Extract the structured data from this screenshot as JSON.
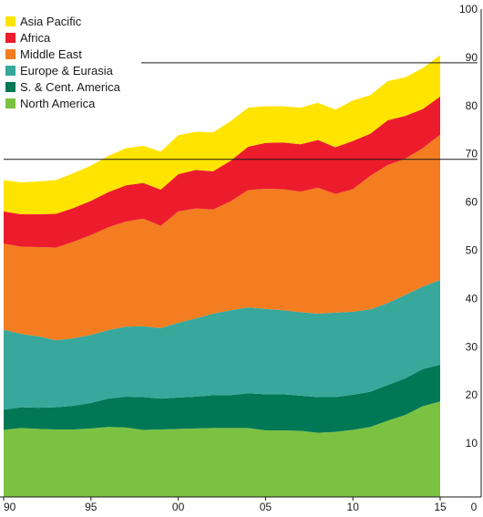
{
  "chart_data": {
    "type": "area",
    "stacked": true,
    "x": [
      1990,
      1991,
      1992,
      1993,
      1994,
      1995,
      1996,
      1997,
      1998,
      1999,
      2000,
      2001,
      2002,
      2003,
      2004,
      2005,
      2006,
      2007,
      2008,
      2009,
      2010,
      2011,
      2012,
      2013,
      2014,
      2015
    ],
    "x_tick_values": [
      1990,
      1995,
      2000,
      2005,
      2010,
      2015
    ],
    "x_tick_labels": [
      "90",
      "95",
      "00",
      "05",
      "10",
      "15"
    ],
    "y_ticks": [
      0,
      10,
      20,
      30,
      40,
      50,
      60,
      70,
      80,
      90,
      100
    ],
    "ylim": [
      0,
      100
    ],
    "xlim": [
      1990,
      2015
    ],
    "title": "",
    "xlabel": "",
    "ylabel": "",
    "legend_position": "top-left",
    "grid": "partial horizontal lines at 70 and 90",
    "series": [
      {
        "name": "North America",
        "color": "#7cc242",
        "values": [
          13.9,
          14.3,
          14.1,
          14.0,
          14.0,
          14.2,
          14.5,
          14.4,
          13.9,
          14.0,
          14.1,
          14.2,
          14.3,
          14.3,
          14.3,
          13.8,
          13.8,
          13.7,
          13.3,
          13.5,
          13.9,
          14.5,
          15.8,
          17.0,
          18.8,
          19.8
        ]
      },
      {
        "name": "S. & Cent. America",
        "color": "#007855",
        "values": [
          4.2,
          4.3,
          4.4,
          4.6,
          4.9,
          5.3,
          5.9,
          6.4,
          6.8,
          6.4,
          6.5,
          6.6,
          6.8,
          6.8,
          7.2,
          7.5,
          7.5,
          7.3,
          7.4,
          7.2,
          7.3,
          7.3,
          7.4,
          7.6,
          7.7,
          7.6
        ]
      },
      {
        "name": "Europe & Eurasia",
        "color": "#38a89d",
        "values": [
          16.6,
          15.2,
          14.8,
          13.9,
          14.0,
          14.1,
          14.2,
          14.5,
          14.7,
          14.6,
          15.5,
          16.2,
          16.9,
          17.6,
          17.8,
          17.7,
          17.4,
          17.3,
          17.3,
          17.5,
          17.2,
          17.1,
          17.0,
          17.3,
          17.1,
          17.6
        ]
      },
      {
        "name": "Middle East",
        "color": "#f37d20",
        "values": [
          17.8,
          18.1,
          18.5,
          19.2,
          20.0,
          20.7,
          21.3,
          21.8,
          22.3,
          21.2,
          23.1,
          22.8,
          21.6,
          22.6,
          24.3,
          24.9,
          25.1,
          25.0,
          26.1,
          24.6,
          25.4,
          27.7,
          28.6,
          28.2,
          28.7,
          30.1
        ]
      },
      {
        "name": "Africa",
        "color": "#ec1c2d",
        "values": [
          6.7,
          6.7,
          6.8,
          7.0,
          7.0,
          7.1,
          7.3,
          7.5,
          7.4,
          7.5,
          7.7,
          8.0,
          7.9,
          8.4,
          9.0,
          9.5,
          9.7,
          9.8,
          9.9,
          9.7,
          10.0,
          8.7,
          9.3,
          8.9,
          8.1,
          7.9
        ]
      },
      {
        "name": "Asia Pacific",
        "color": "#ffe400",
        "values": [
          6.5,
          6.6,
          6.8,
          7.0,
          7.2,
          7.3,
          7.5,
          7.7,
          7.7,
          7.9,
          8.1,
          7.9,
          8.1,
          8.2,
          8.1,
          7.6,
          7.5,
          7.6,
          7.7,
          7.8,
          8.4,
          8.0,
          8.1,
          8.0,
          8.5,
          8.6
        ]
      }
    ],
    "legend_order": [
      "Asia Pacific",
      "Africa",
      "Middle East",
      "Europe & Eurasia",
      "S. & Cent. America",
      "North America"
    ],
    "colors": {
      "text": "#1a1a1a",
      "gridline": "#1a1a1a",
      "background": "#ffffff"
    }
  }
}
